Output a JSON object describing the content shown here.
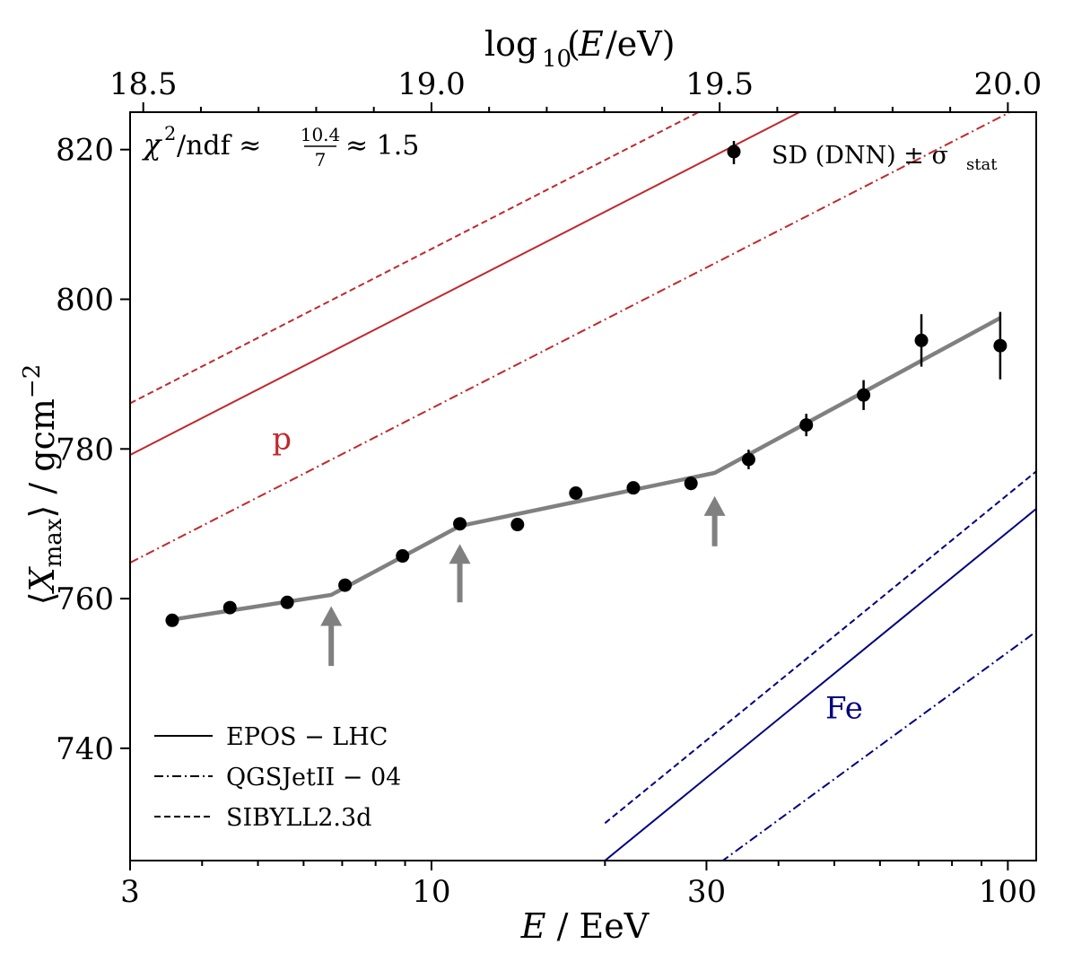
{
  "chart_data": {
    "type": "scatter",
    "title": "",
    "xlabel": "E / EeV",
    "ylabel": "⟨X_max⟩ / gcm⁻²",
    "ylabel_parts": {
      "open": "⟨",
      "sym": "X",
      "sub": "max",
      "close": "⟩",
      "unit": " / gcm",
      "sup": "−2"
    },
    "x2label": "log10(E/eV)",
    "x2label_parts": {
      "pre": "log",
      "sub": "10",
      "open": "(",
      "sym": "E",
      "post": "/eV)"
    },
    "xscale": "log",
    "xlim": [
      3,
      112
    ],
    "ylim": [
      725,
      825
    ],
    "xticks": [
      3,
      10,
      30,
      100
    ],
    "xtick_labels": [
      "3",
      "10",
      "30",
      "100"
    ],
    "yticks": [
      740,
      760,
      780,
      800,
      820
    ],
    "ytick_labels": [
      "740",
      "760",
      "780",
      "800",
      "820"
    ],
    "x2ticks": [
      18.5,
      19.0,
      19.5,
      20.0
    ],
    "x2tick_labels": [
      "18.5",
      "19.0",
      "19.5",
      "20.0"
    ],
    "chi2_annotation": {
      "prefix": "χ",
      "sup": "2",
      "mid": "/ndf ≈",
      "num": "10.4",
      "den": "7",
      "suffix": "≈ 1.5"
    },
    "data_series": {
      "name": "SD (DNN) ± σstat",
      "legend_parts": {
        "main": "SD (DNN)  ±  σ",
        "sub": "stat"
      },
      "x": [
        3.55,
        4.47,
        5.62,
        7.08,
        8.91,
        11.2,
        14.1,
        17.8,
        22.4,
        28.2,
        35.5,
        44.7,
        56.2,
        70.8,
        97.0
      ],
      "y": [
        757.1,
        758.8,
        759.5,
        761.8,
        765.7,
        770.0,
        769.9,
        774.1,
        774.8,
        775.4,
        778.6,
        783.2,
        787.2,
        794.5,
        793.8
      ],
      "err": [
        0.3,
        0.3,
        0.3,
        0.3,
        0.4,
        0.5,
        0.5,
        0.6,
        0.7,
        0.9,
        1.3,
        1.5,
        2.0,
        3.5,
        4.5
      ]
    },
    "broken_fit": {
      "color": "#808080",
      "x": [
        3.55,
        6.7,
        11.2,
        31.0,
        97.0
      ],
      "y": [
        757.2,
        760.5,
        769.7,
        776.8,
        797.5
      ]
    },
    "break_arrows": {
      "color": "#808080",
      "x": [
        6.7,
        11.2,
        31.0
      ],
      "y_tip": [
        759.0,
        767.3,
        773.7
      ],
      "y_tail": [
        751.0,
        759.5,
        767.0
      ]
    },
    "model_lines": [
      {
        "name": "EPOS-LHC",
        "primary": "p",
        "style": "solid",
        "color": "#c0282d",
        "x": [
          3,
          112
        ],
        "y": [
          779.2,
          841.2
        ]
      },
      {
        "name": "QGSJetII-04",
        "primary": "p",
        "style": "dashdot",
        "color": "#c0282d",
        "x": [
          3,
          112
        ],
        "y": [
          764.8,
          826.8
        ]
      },
      {
        "name": "SIBYLL2.3d",
        "primary": "p",
        "style": "dashed",
        "color": "#c0282d",
        "x": [
          3,
          112
        ],
        "y": [
          786.1,
          848.1
        ]
      },
      {
        "name": "EPOS-LHC",
        "primary": "Fe",
        "style": "solid",
        "color": "#000080",
        "x": [
          20,
          112
        ],
        "y": [
          725.0,
          772.0
        ]
      },
      {
        "name": "QGSJetII-04",
        "primary": "Fe",
        "style": "dashdot",
        "color": "#000080",
        "x": [
          30,
          112
        ],
        "y": [
          723.4,
          755.6
        ]
      },
      {
        "name": "SIBYLL2.3d",
        "primary": "Fe",
        "style": "dashed",
        "color": "#000080",
        "x": [
          20,
          112
        ],
        "y": [
          730.0,
          777.0
        ]
      }
    ],
    "model_legend": [
      {
        "label": "EPOS − LHC",
        "style": "solid"
      },
      {
        "label": "QGSJetII − 04",
        "style": "dashdot"
      },
      {
        "label": "SIBYLL2.3d",
        "style": "dashed"
      }
    ],
    "annotations": [
      {
        "text": "p",
        "color": "#c0282d",
        "x": 5.5,
        "y": 780
      },
      {
        "text": "Fe",
        "color": "#000080",
        "x": 52,
        "y": 744
      }
    ],
    "legend_position": "top-right"
  }
}
